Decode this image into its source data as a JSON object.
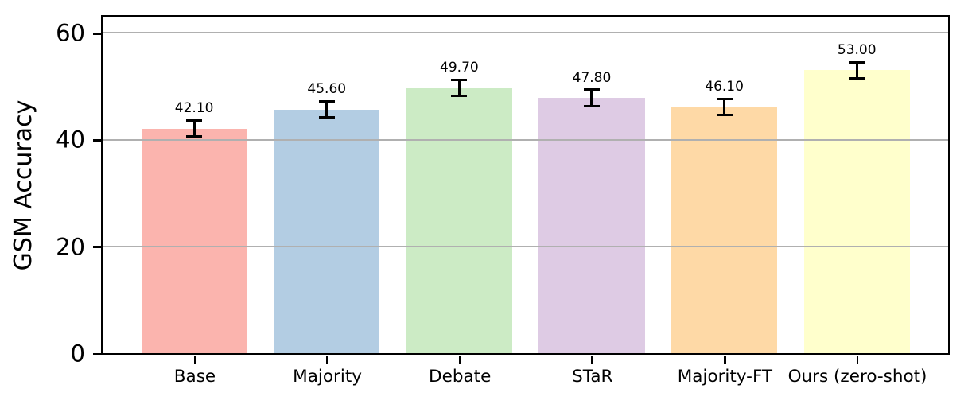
{
  "figure": {
    "background": "#ffffff"
  },
  "chart_data": {
    "type": "bar",
    "title": "",
    "xlabel": "",
    "ylabel": "GSM Accuracy",
    "categories": [
      "Base",
      "Majority",
      "Debate",
      "STaR",
      "Majority-FT",
      "Ours (zero-shot)"
    ],
    "values": [
      42.1,
      45.6,
      49.7,
      47.8,
      46.1,
      53.0
    ],
    "value_labels": [
      "42.10",
      "45.60",
      "49.70",
      "47.80",
      "46.10",
      "53.00"
    ],
    "errors": [
      1.5,
      1.5,
      1.5,
      1.5,
      1.5,
      1.5
    ],
    "bar_colors": [
      "#fbb4ae",
      "#b3cde3",
      "#ccebc5",
      "#decbe4",
      "#fed9a6",
      "#ffffcc"
    ],
    "ytick_labels": [
      "0",
      "20",
      "40",
      "60"
    ],
    "ytick_values": [
      0,
      20,
      40,
      60
    ],
    "ylim": [
      0,
      63
    ],
    "grid": true,
    "grid_on_top": true,
    "legend_position": "none",
    "colors": {
      "spine": "#000000",
      "gridline": "#b0b0b0",
      "error_bar": "#000000",
      "text": "#000000"
    }
  }
}
